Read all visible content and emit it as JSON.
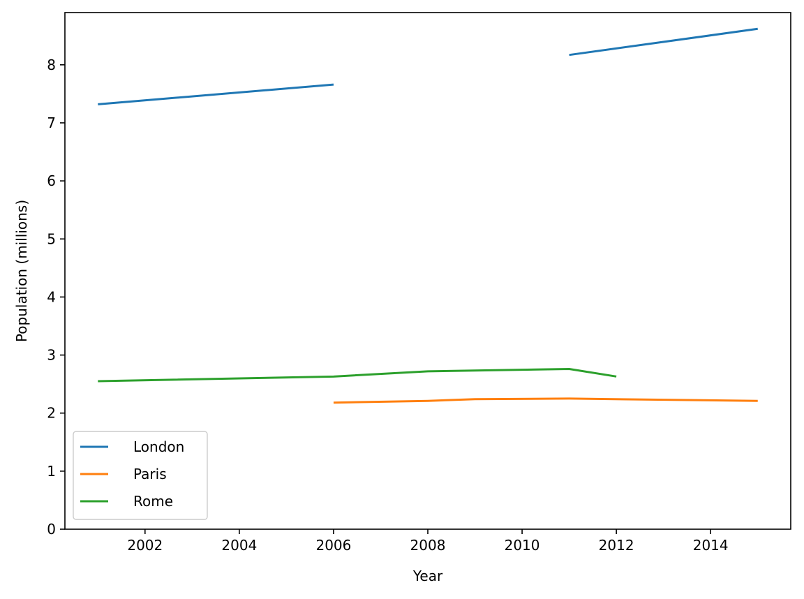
{
  "chart_data": {
    "type": "line",
    "title": "",
    "xlabel": "Year",
    "ylabel": "Population (millions)",
    "xlim": [
      2000.3,
      2015.7
    ],
    "ylim": [
      0,
      8.9
    ],
    "xticks": [
      2002,
      2004,
      2006,
      2008,
      2010,
      2012,
      2014
    ],
    "xtick_labels": [
      "2002",
      "2004",
      "2006",
      "2008",
      "2010",
      "2012",
      "2014"
    ],
    "yticks": [
      0,
      1,
      2,
      3,
      4,
      5,
      6,
      7,
      8
    ],
    "ytick_labels": [
      "0",
      "1",
      "2",
      "3",
      "4",
      "5",
      "6",
      "7",
      "8"
    ],
    "grid": false,
    "legend": {
      "position": "lower-left"
    },
    "series": [
      {
        "name": "London",
        "color": "#1f77b4",
        "segments": [
          [
            [
              2001,
              7.32
            ],
            [
              2006,
              7.66
            ]
          ],
          [
            [
              2011,
              8.17
            ],
            [
              2015,
              8.62
            ]
          ]
        ]
      },
      {
        "name": "Paris",
        "color": "#ff7f0e",
        "segments": [
          [
            [
              2006,
              2.18
            ],
            [
              2008,
              2.21
            ],
            [
              2009,
              2.24
            ],
            [
              2011,
              2.25
            ],
            [
              2015,
              2.21
            ]
          ]
        ]
      },
      {
        "name": "Rome",
        "color": "#2ca02c",
        "segments": [
          [
            [
              2001,
              2.55
            ],
            [
              2006,
              2.63
            ],
            [
              2008,
              2.72
            ],
            [
              2011,
              2.76
            ],
            [
              2012,
              2.63
            ]
          ]
        ]
      }
    ]
  }
}
